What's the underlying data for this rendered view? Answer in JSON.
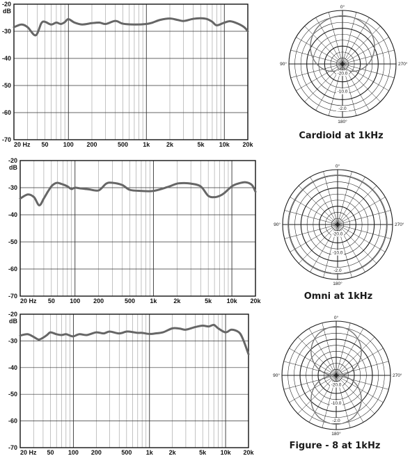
{
  "chart_data": [
    {
      "type": "line",
      "ylabel": "dB",
      "ylim": [
        -70,
        -20
      ],
      "yticks": [
        "-20",
        "-30",
        "-40",
        "-50",
        "-60",
        "-70"
      ],
      "x_scale": "log",
      "xlim": [
        20,
        20000
      ],
      "xticks": [
        "20 Hz",
        "50",
        "100",
        "200",
        "500",
        "1k",
        "2k",
        "5k",
        "10k",
        "20k"
      ],
      "grid": true,
      "series": [
        {
          "x": [
            20,
            25,
            30,
            38,
            45,
            50,
            60,
            70,
            80,
            90,
            100,
            120,
            150,
            200,
            250,
            300,
            400,
            500,
            700,
            1000,
            1200,
            1500,
            2000,
            2500,
            3000,
            4000,
            5000,
            6000,
            7000,
            8000,
            10000,
            12000,
            15000,
            18000,
            20000
          ],
          "y": [
            -28.5,
            -27.5,
            -28.5,
            -31.5,
            -27,
            -26.5,
            -27.5,
            -26.8,
            -27.3,
            -26.6,
            -25.5,
            -26.8,
            -27.5,
            -27,
            -26.8,
            -27.3,
            -26.2,
            -27.2,
            -27.5,
            -27.3,
            -26.8,
            -25.8,
            -25.3,
            -25.8,
            -26.2,
            -25.4,
            -25.2,
            -25.5,
            -26.5,
            -27.8,
            -26.8,
            -26.3,
            -27.2,
            -28.5,
            -30
          ]
        }
      ]
    },
    {
      "type": "line",
      "ylabel": "dB",
      "ylim": [
        -70,
        -20
      ],
      "yticks": [
        "-20",
        "-30",
        "-40",
        "-50",
        "-60",
        "-70"
      ],
      "x_scale": "log",
      "xlim": [
        20,
        20000
      ],
      "xticks": [
        "20 Hz",
        "50",
        "100",
        "200",
        "500",
        "1k",
        "2k",
        "5k",
        "10k",
        "20k"
      ],
      "grid": true,
      "series": [
        {
          "x": [
            20,
            25,
            30,
            35,
            40,
            45,
            50,
            55,
            60,
            70,
            80,
            90,
            100,
            120,
            150,
            200,
            250,
            300,
            400,
            500,
            700,
            1000,
            1500,
            2000,
            2500,
            3000,
            4000,
            5000,
            6000,
            7000,
            8000,
            10000,
            12000,
            15000,
            18000,
            20000
          ],
          "y": [
            -34,
            -32.5,
            -33.5,
            -36.5,
            -34,
            -31.5,
            -29.5,
            -28.5,
            -28.2,
            -28.8,
            -29.5,
            -30.5,
            -30,
            -30.3,
            -30.6,
            -31,
            -28.5,
            -28.2,
            -29,
            -30.8,
            -31.2,
            -31.2,
            -29.8,
            -28.5,
            -28.3,
            -28.5,
            -29.5,
            -33,
            -33.5,
            -33,
            -32,
            -29.5,
            -28.5,
            -28,
            -29,
            -31.5
          ]
        }
      ]
    },
    {
      "type": "line",
      "ylabel": "dB",
      "ylim": [
        -70,
        -20
      ],
      "yticks": [
        "-20",
        "-30",
        "-40",
        "-50",
        "-60",
        "-70"
      ],
      "x_scale": "log",
      "xlim": [
        20,
        20000
      ],
      "xticks": [
        "20 Hz",
        "50",
        "100",
        "200",
        "500",
        "1k",
        "2k",
        "5k",
        "10k",
        "20k"
      ],
      "grid": true,
      "series": [
        {
          "x": [
            20,
            25,
            30,
            35,
            40,
            45,
            50,
            60,
            70,
            80,
            90,
            100,
            120,
            150,
            200,
            250,
            300,
            400,
            500,
            600,
            700,
            800,
            1000,
            1200,
            1500,
            2000,
            2500,
            3000,
            4000,
            5000,
            6000,
            7000,
            8000,
            10000,
            12000,
            15000,
            17000,
            20000
          ],
          "y": [
            -28,
            -27.5,
            -28.5,
            -29.5,
            -28.8,
            -27.8,
            -26.8,
            -27.5,
            -27.8,
            -27.5,
            -28,
            -28.3,
            -27.5,
            -27.8,
            -26.8,
            -27.2,
            -26.5,
            -27.2,
            -26.5,
            -26.7,
            -27,
            -27,
            -27.4,
            -27.2,
            -26.8,
            -25.3,
            -25.4,
            -25.8,
            -24.8,
            -24.3,
            -24.6,
            -24,
            -25.3,
            -26.8,
            -25.8,
            -26.8,
            -29.5,
            -35
          ]
        }
      ]
    }
  ],
  "polar_plots": [
    {
      "caption": "Cardioid at 1kHz",
      "pattern": "cardioid",
      "angle_labels": [
        "0°",
        "90°",
        "180°",
        "270°"
      ],
      "ring_labels": [
        "-20.0",
        "-10.0",
        "-2.0"
      ]
    },
    {
      "caption": "Omni at 1kHz",
      "pattern": "omni",
      "angle_labels": [
        "0°",
        "90°",
        "180°",
        "270°"
      ],
      "ring_labels": [
        "-20.0",
        "-10.0",
        "-2.0"
      ]
    },
    {
      "caption": "Figure - 8 at 1kHz",
      "pattern": "figure8",
      "angle_labels": [
        "0°",
        "90°",
        "180°",
        "270°"
      ],
      "ring_labels": [
        "-20.0",
        "-10.0",
        "-2.0"
      ]
    }
  ],
  "style": {
    "curve_color": "#666666",
    "grid_color": "#9a9a9a",
    "border_color": "#111111"
  }
}
